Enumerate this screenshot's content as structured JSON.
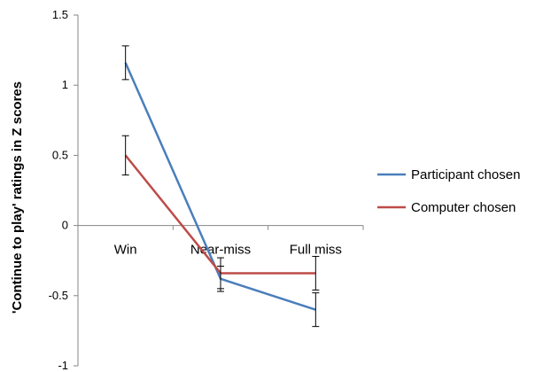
{
  "chart_data": {
    "type": "line",
    "title": "",
    "xlabel": "",
    "ylabel": "'Continue to play' ratings in Z scores",
    "categories": [
      "Win",
      "Near-miss",
      "Full miss"
    ],
    "ylim": [
      -1,
      1.5
    ],
    "yticks": [
      1.5,
      1,
      0.5,
      0,
      -0.5,
      -1
    ],
    "ytick_labels": [
      "1.5",
      "1",
      "0.5",
      "0",
      "-0.5",
      "-1"
    ],
    "grid": false,
    "legend_position": "right",
    "series": [
      {
        "name": "Participant chosen",
        "color": "#4a7ebb",
        "values": [
          1.16,
          -0.38,
          -0.6
        ],
        "errors": [
          0.12,
          0.09,
          0.12
        ]
      },
      {
        "name": "Computer chosen",
        "color": "#be4b48",
        "values": [
          0.5,
          -0.34,
          -0.34
        ],
        "errors": [
          0.14,
          0.11,
          0.12
        ]
      }
    ]
  }
}
